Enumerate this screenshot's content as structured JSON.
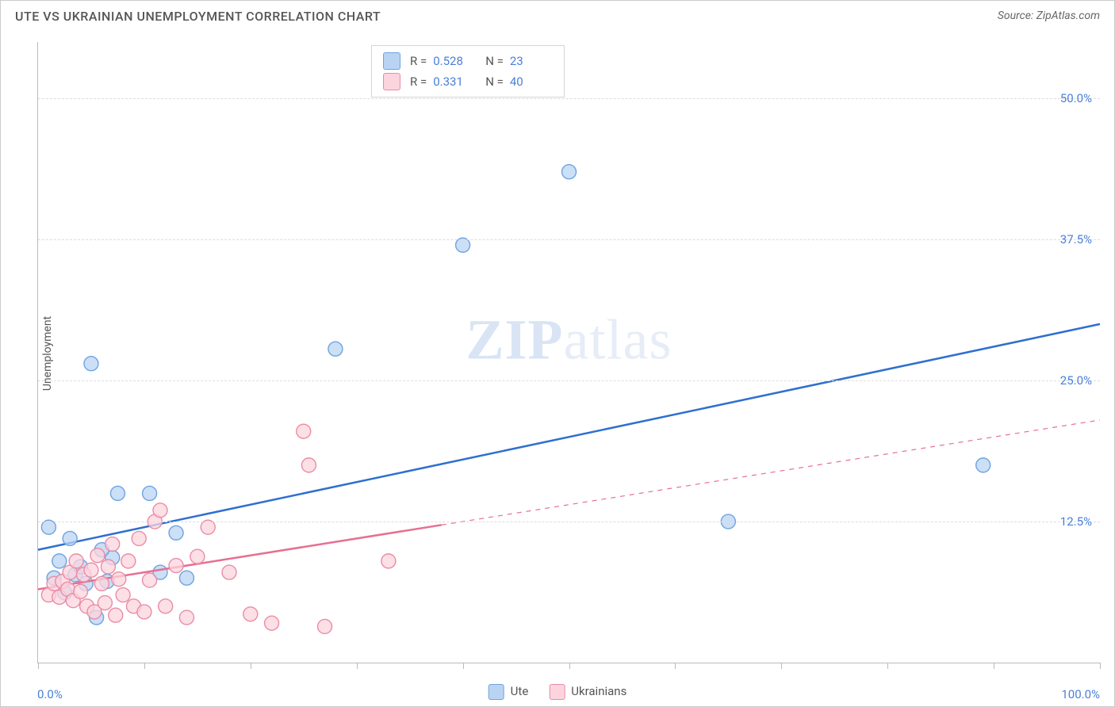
{
  "title": "UTE VS UKRAINIAN UNEMPLOYMENT CORRELATION CHART",
  "source_label": "Source: ZipAtlas.com",
  "watermark_a": "ZIP",
  "watermark_b": "atlas",
  "y_axis_label": "Unemployment",
  "chart": {
    "type": "scatter",
    "xlim": [
      0,
      100
    ],
    "ylim": [
      0,
      55
    ],
    "x_ticks_major": [
      0,
      10,
      20,
      30,
      40,
      50,
      60,
      70,
      80,
      90,
      100
    ],
    "y_gridlines": [
      12.5,
      25.0,
      37.5,
      50.0
    ],
    "y_tick_labels": [
      "12.5%",
      "25.0%",
      "37.5%",
      "50.0%"
    ],
    "x_tick_labels": {
      "min": "0.0%",
      "max": "100.0%"
    },
    "background_color": "#ffffff",
    "grid_color": "#dddddd",
    "axis_color": "#bbbbbb",
    "marker_radius": 9,
    "marker_stroke_width": 1.4,
    "line_width_solid": 2.5,
    "line_width_dash": 1.2,
    "series": [
      {
        "name": "Ute",
        "fill": "#b9d4f3",
        "stroke": "#6fa3e0",
        "line_color": "#2f6fd0",
        "R": "0.528",
        "N": "23",
        "trend": {
          "x1": 0,
          "y1": 10.0,
          "x2": 100,
          "y2": 30.0,
          "solid_until_x": 100
        },
        "points": [
          [
            1.0,
            12.0
          ],
          [
            1.5,
            7.5
          ],
          [
            2.0,
            9.0
          ],
          [
            3.5,
            7.8
          ],
          [
            4.0,
            8.5
          ],
          [
            5.0,
            26.5
          ],
          [
            6.5,
            7.2
          ],
          [
            7.0,
            9.3
          ],
          [
            7.5,
            15.0
          ],
          [
            10.5,
            15.0
          ],
          [
            11.5,
            8.0
          ],
          [
            13.0,
            11.5
          ],
          [
            14.0,
            7.5
          ],
          [
            5.5,
            4.0
          ],
          [
            28.0,
            27.8
          ],
          [
            40.0,
            37.0
          ],
          [
            50.0,
            43.5
          ],
          [
            65.0,
            12.5
          ],
          [
            89.0,
            17.5
          ],
          [
            3.0,
            11.0
          ],
          [
            2.5,
            6.2
          ],
          [
            4.5,
            7.0
          ],
          [
            6.0,
            10.0
          ]
        ]
      },
      {
        "name": "Ukrainians",
        "fill": "#fcd4de",
        "stroke": "#e98ca6",
        "line_color": "#e76f91",
        "R": "0.331",
        "N": "40",
        "trend": {
          "x1": 0,
          "y1": 6.5,
          "x2": 100,
          "y2": 21.5,
          "solid_until_x": 38
        },
        "points": [
          [
            1.0,
            6.0
          ],
          [
            1.5,
            7.0
          ],
          [
            2.0,
            5.8
          ],
          [
            2.3,
            7.2
          ],
          [
            2.8,
            6.5
          ],
          [
            3.0,
            8.0
          ],
          [
            3.3,
            5.5
          ],
          [
            3.6,
            9.0
          ],
          [
            4.0,
            6.3
          ],
          [
            4.3,
            7.8
          ],
          [
            4.6,
            5.0
          ],
          [
            5.0,
            8.2
          ],
          [
            5.3,
            4.5
          ],
          [
            5.6,
            9.5
          ],
          [
            6.0,
            7.0
          ],
          [
            6.3,
            5.3
          ],
          [
            6.6,
            8.5
          ],
          [
            7.0,
            10.5
          ],
          [
            7.3,
            4.2
          ],
          [
            7.6,
            7.4
          ],
          [
            8.0,
            6.0
          ],
          [
            8.5,
            9.0
          ],
          [
            9.0,
            5.0
          ],
          [
            9.5,
            11.0
          ],
          [
            10.0,
            4.5
          ],
          [
            10.5,
            7.3
          ],
          [
            11.0,
            12.5
          ],
          [
            11.5,
            13.5
          ],
          [
            12.0,
            5.0
          ],
          [
            13.0,
            8.6
          ],
          [
            14.0,
            4.0
          ],
          [
            15.0,
            9.4
          ],
          [
            16.0,
            12.0
          ],
          [
            18.0,
            8.0
          ],
          [
            20.0,
            4.3
          ],
          [
            22.0,
            3.5
          ],
          [
            25.0,
            20.5
          ],
          [
            25.5,
            17.5
          ],
          [
            27.0,
            3.2
          ],
          [
            33.0,
            9.0
          ]
        ]
      }
    ]
  },
  "legend_bottom": [
    {
      "label": "Ute",
      "fill": "#b9d4f3",
      "stroke": "#6fa3e0"
    },
    {
      "label": "Ukrainians",
      "fill": "#fcd4de",
      "stroke": "#e98ca6"
    }
  ],
  "colors": {
    "title": "#555555",
    "source": "#666666",
    "tick_label": "#4a7fd8"
  }
}
